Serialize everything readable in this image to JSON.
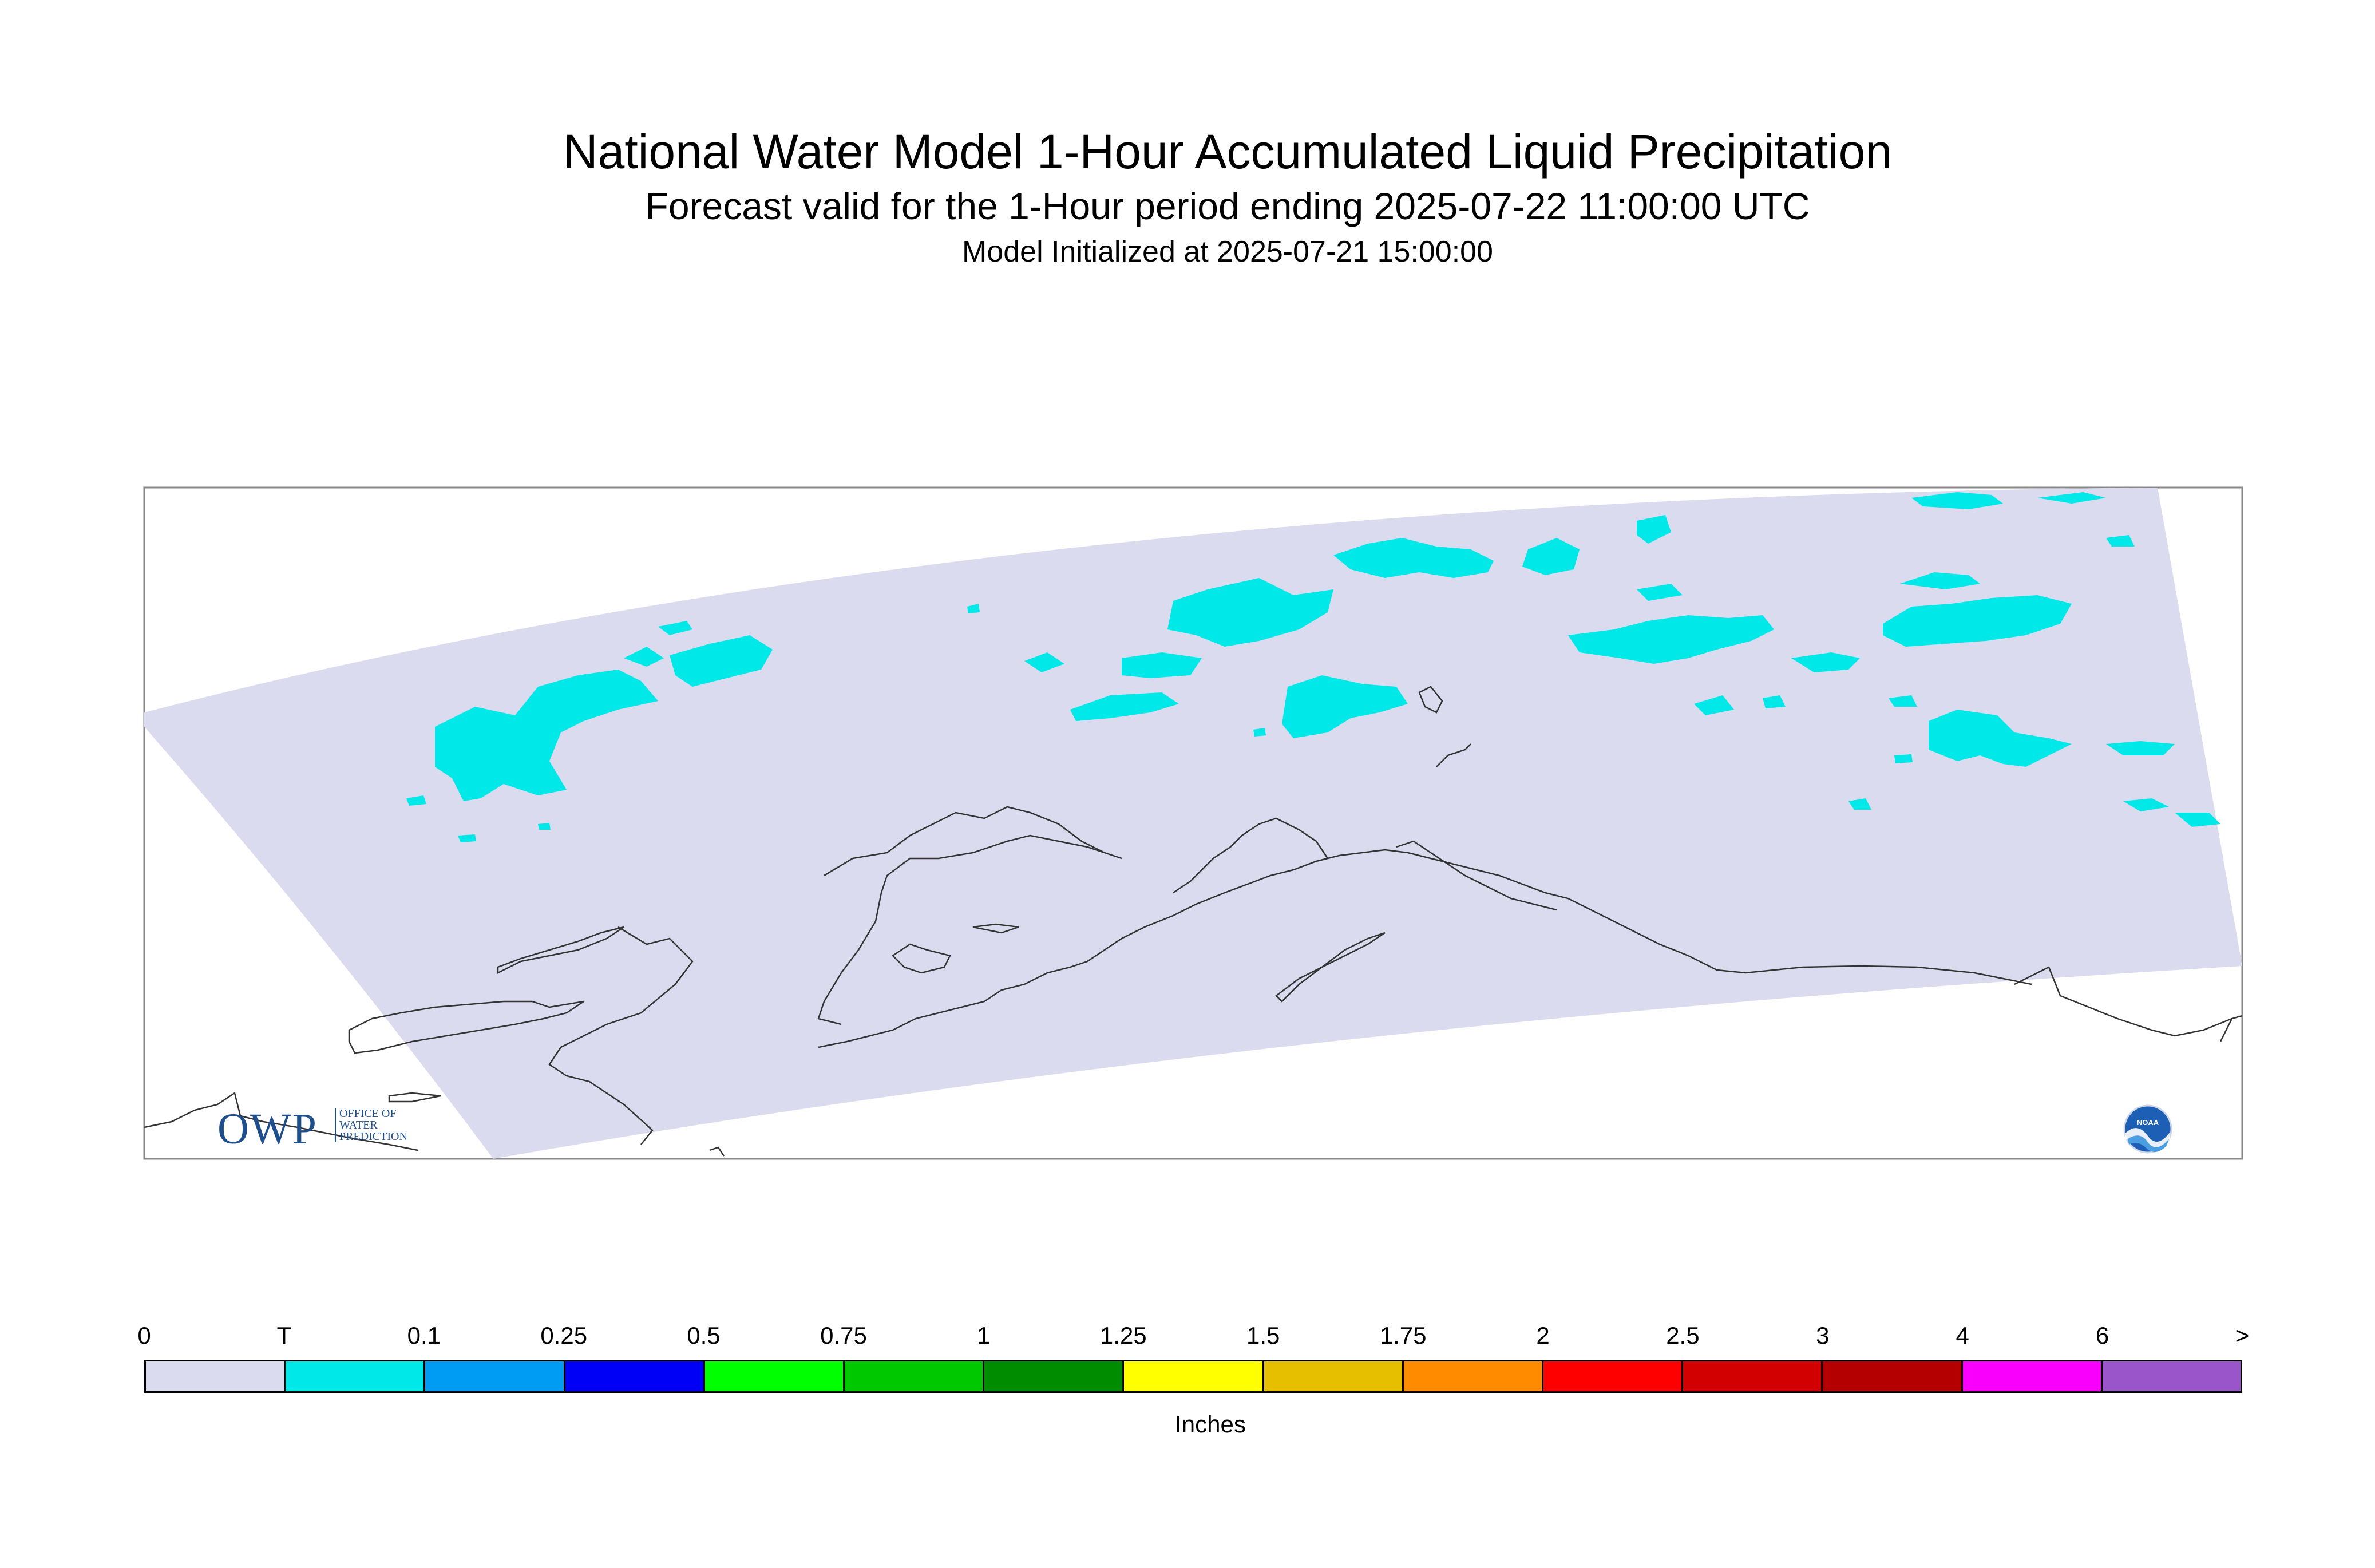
{
  "title": "National Water Model 1-Hour Accumulated Liquid Precipitation",
  "subtitle": "Forecast valid for the 1-Hour period ending 2025-07-22 11:00:00 UTC",
  "init": "Model Initialized at 2025-07-21 15:00:00",
  "legend": {
    "units": "Inches",
    "ticks": [
      "0",
      "T",
      "0.1",
      "0.25",
      "0.5",
      "0.75",
      "1",
      "1.25",
      "1.5",
      "1.75",
      "2",
      "2.5",
      "3",
      "4",
      "6",
      ">"
    ],
    "colors": [
      "#dadbef",
      "#00e8e8",
      "#009cf4",
      "#0000f6",
      "#00ff00",
      "#00c800",
      "#008c00",
      "#ffff00",
      "#e6c000",
      "#ff8c00",
      "#ff0000",
      "#d20000",
      "#b40000",
      "#f800fc",
      "#9955c9"
    ]
  },
  "map": {
    "domain_color": "#dadbef",
    "precip_color": "#00e8e8",
    "coast_color": "#333333",
    "frame_color": "#888888"
  },
  "logos": {
    "owp_text": "OWP",
    "owp_sub": [
      "OFFICE OF",
      "WATER",
      "PREDICTION"
    ],
    "noaa_text": "NOAA"
  }
}
